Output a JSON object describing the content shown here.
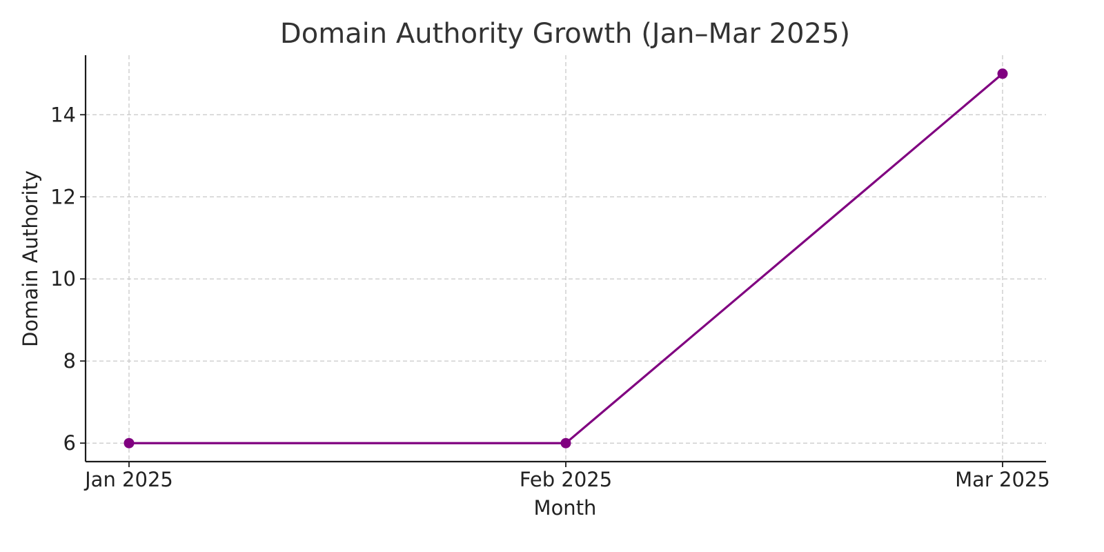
{
  "colors": {
    "series": "#800080",
    "grid": "#c8c8c8",
    "axis": "#1a1a1a",
    "text": "#222222"
  },
  "chart_data": {
    "type": "line",
    "title": "Domain Authority Growth (Jan–Mar 2025)",
    "xlabel": "Month",
    "ylabel": "Domain Authority",
    "categories": [
      "Jan 2025",
      "Feb 2025",
      "Mar 2025"
    ],
    "series": [
      {
        "values": [
          6,
          6,
          15
        ],
        "color": "#800080",
        "marker": "circle"
      }
    ],
    "yticks": [
      6,
      8,
      10,
      12,
      14
    ],
    "ylim": [
      5.55,
      15.45
    ],
    "grid": true,
    "legend": "none"
  }
}
